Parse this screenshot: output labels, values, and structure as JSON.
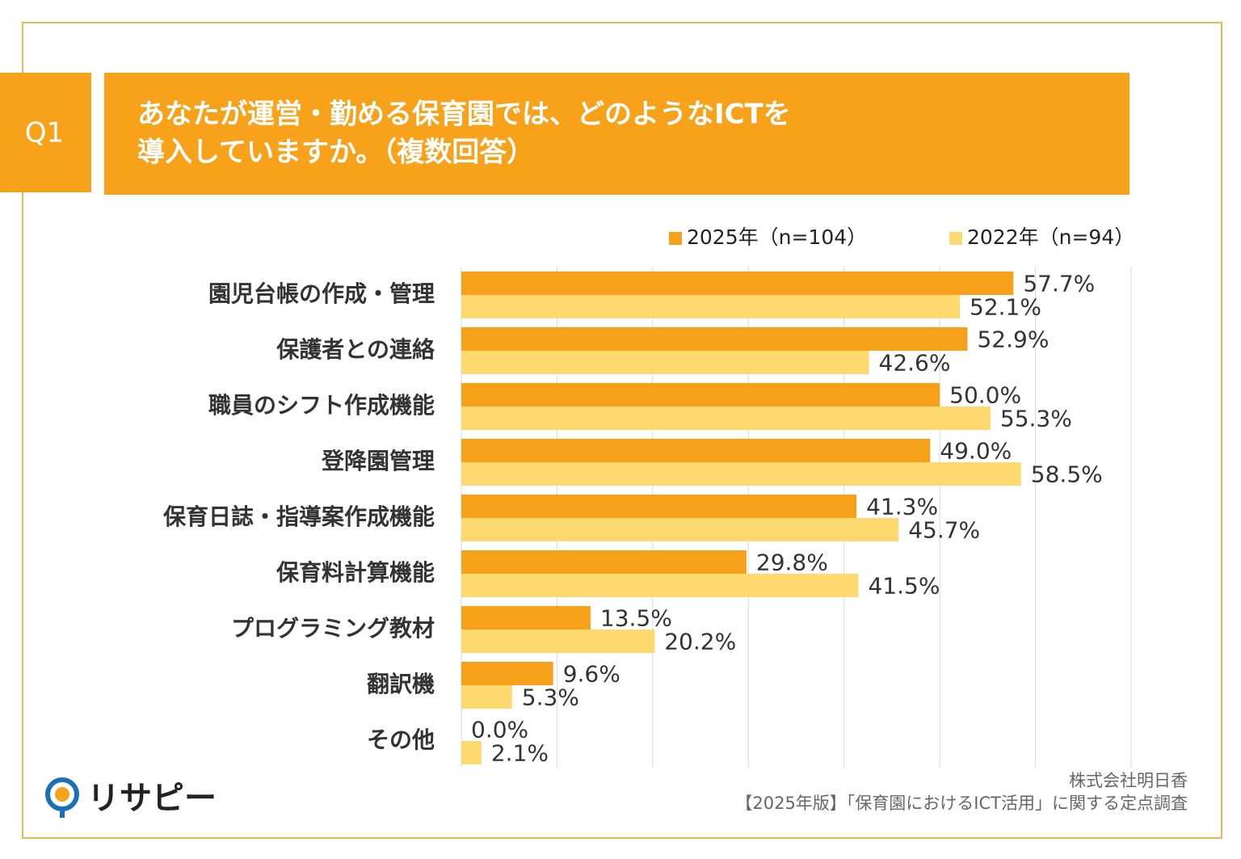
{
  "header": {
    "q": "Q1",
    "title": [
      "あなたが運営・勤める保育園では、どのようなICTを",
      "導入していますか。（複数回答）"
    ]
  },
  "chart_data": {
    "type": "hbar",
    "categories": [
      "園児台帳の作成・管理",
      "保護者との連絡",
      "職員のシフト作成機能",
      "登降園管理",
      "保育日誌・指導案作成機能",
      "保育料計算機能",
      "プログラミング教材",
      "翻訳機",
      "その他"
    ],
    "series": [
      {
        "name": "2025年（n=104）",
        "color": "#f7a11a",
        "values": [
          57.7,
          52.9,
          50.0,
          49.0,
          41.3,
          29.8,
          13.5,
          9.6,
          0.0
        ],
        "value_labels": [
          "57.7%",
          "52.9%",
          "50.0%",
          "49.0%",
          "41.3%",
          "29.8%",
          "13.5%",
          "9.6%",
          "0.0%"
        ]
      },
      {
        "name": "2022年（n=94）",
        "color": "#fdd970",
        "values": [
          52.1,
          42.6,
          55.3,
          58.5,
          45.7,
          41.5,
          20.2,
          5.3,
          2.1
        ],
        "value_labels": [
          "52.1%",
          "42.6%",
          "55.3%",
          "58.5%",
          "45.7%",
          "41.5%",
          "20.2%",
          "5.3%",
          "2.1%"
        ]
      }
    ],
    "xlim": [
      0,
      70
    ],
    "xticks": [
      0,
      10,
      20,
      30,
      40,
      50,
      60,
      70
    ],
    "grid": true,
    "legend": "top-right"
  },
  "footer": {
    "brand": "リサピー",
    "source": [
      "株式会社明日香",
      "【2025年版】「保育園におけるICT活用」に関する定点調査"
    ]
  }
}
